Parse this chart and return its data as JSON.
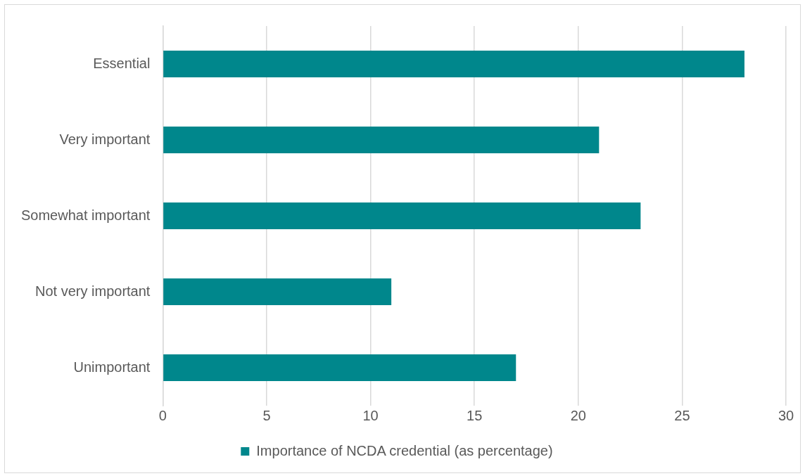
{
  "chart_data": {
    "type": "bar",
    "orientation": "horizontal",
    "categories": [
      "Essential",
      "Very important",
      "Somewhat important",
      "Not very important",
      "Unimportant"
    ],
    "series": [
      {
        "name": "Importance of NCDA credential (as percentage)",
        "color": "#00878c",
        "values": [
          28,
          21,
          23,
          11,
          17
        ]
      }
    ],
    "xlim": [
      0,
      30
    ],
    "xticks": [
      0,
      5,
      10,
      15,
      20,
      25,
      30
    ],
    "grid": "x",
    "legend": "bottom"
  }
}
